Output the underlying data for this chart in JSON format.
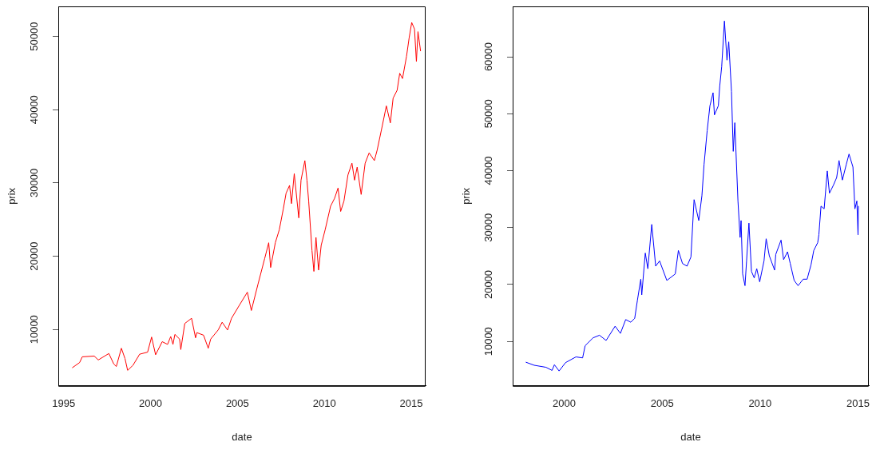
{
  "chart_data": [
    {
      "type": "line",
      "xlabel": "date",
      "ylabel": "prix",
      "marker": "none",
      "line_style": "solid",
      "xlim": [
        1994.69,
        2015.83
      ],
      "xticks": [
        1995,
        2000,
        2005,
        2010,
        2015
      ],
      "ylim": [
        2300,
        54100
      ],
      "yticks": [
        10000,
        20000,
        30000,
        40000,
        50000
      ],
      "x": [
        1995.49,
        1995.92,
        1996.07,
        1996.76,
        1996.99,
        1997.6,
        1997.88,
        1998.03,
        1998.32,
        1998.53,
        1998.68,
        1998.99,
        1999.37,
        1999.83,
        2000.06,
        2000.29,
        2000.67,
        2000.98,
        2001.16,
        2001.29,
        2001.4,
        2001.67,
        2001.74,
        2001.97,
        2002.36,
        2002.59,
        2002.66,
        2003.05,
        2003.32,
        2003.46,
        2003.89,
        2004.12,
        2004.43,
        2004.66,
        2005.11,
        2005.57,
        2005.8,
        2006.18,
        2006.57,
        2006.8,
        2006.91,
        2007.18,
        2007.41,
        2007.64,
        2007.8,
        2008.0,
        2008.11,
        2008.27,
        2008.53,
        2008.66,
        2008.88,
        2009.0,
        2009.1,
        2009.29,
        2009.4,
        2009.52,
        2009.67,
        2009.82,
        2010.05,
        2010.36,
        2010.59,
        2010.79,
        2010.94,
        2011.13,
        2011.36,
        2011.59,
        2011.74,
        2011.89,
        2012.12,
        2012.35,
        2012.58,
        2012.88,
        2013.04,
        2013.34,
        2013.57,
        2013.8,
        2013.96,
        2014.19,
        2014.34,
        2014.5,
        2014.73,
        2014.88,
        2015.03,
        2015.19,
        2015.3,
        2015.39,
        2015.54
      ],
      "series": [
        {
          "color": "#ff0000",
          "values": [
            4770,
            5490,
            6270,
            6370,
            5840,
            6720,
            5300,
            4950,
            7440,
            6020,
            4420,
            5120,
            6620,
            6910,
            8970,
            6550,
            8330,
            7970,
            9040,
            7970,
            9330,
            8690,
            7260,
            10820,
            11530,
            8860,
            9570,
            9220,
            7440,
            8690,
            9930,
            10990,
            9930,
            11530,
            13310,
            15090,
            12590,
            16160,
            19710,
            21840,
            18460,
            21840,
            23630,
            26460,
            28600,
            29670,
            27180,
            31270,
            25230,
            30380,
            33050,
            30380,
            27530,
            20780,
            17930,
            22560,
            18110,
            21490,
            23630,
            26830,
            27900,
            29310,
            26110,
            27530,
            31090,
            32700,
            30380,
            32160,
            28430,
            32700,
            34110,
            33050,
            34470,
            37850,
            40520,
            38200,
            41580,
            42650,
            44970,
            44250,
            47270,
            49770,
            51900,
            51010,
            46570,
            50650,
            47990
          ]
        }
      ]
    },
    {
      "type": "line",
      "xlabel": "date",
      "ylabel": "prix",
      "marker": "none",
      "line_style": "solid",
      "xlim": [
        1997.37,
        2015.55
      ],
      "xticks": [
        2000,
        2005,
        2010,
        2015
      ],
      "ylim": [
        2200,
        68850
      ],
      "yticks": [
        10000,
        20000,
        30000,
        40000,
        50000,
        60000
      ],
      "x": [
        1998.04,
        1998.47,
        1999.07,
        1999.38,
        1999.5,
        1999.74,
        2000.07,
        2000.6,
        2000.94,
        2001.07,
        2001.47,
        2001.8,
        2002.14,
        2002.6,
        2002.87,
        2003.14,
        2003.4,
        2003.6,
        2003.74,
        2003.91,
        2003.96,
        2004.14,
        2004.27,
        2004.47,
        2004.67,
        2004.87,
        2005.24,
        2005.67,
        2005.83,
        2006.04,
        2006.27,
        2006.47,
        2006.63,
        2006.87,
        2007.03,
        2007.14,
        2007.3,
        2007.44,
        2007.6,
        2007.67,
        2007.87,
        2007.94,
        2008.04,
        2008.18,
        2008.31,
        2008.4,
        2008.54,
        2008.63,
        2008.71,
        2008.87,
        2008.98,
        2009.03,
        2009.11,
        2009.23,
        2009.31,
        2009.43,
        2009.56,
        2009.7,
        2009.83,
        2009.98,
        2010.2,
        2010.31,
        2010.47,
        2010.74,
        2010.8,
        2011.07,
        2011.2,
        2011.4,
        2011.54,
        2011.74,
        2011.94,
        2012.2,
        2012.4,
        2012.6,
        2012.74,
        2012.94,
        2013.0,
        2013.11,
        2013.27,
        2013.43,
        2013.54,
        2013.74,
        2013.91,
        2014.03,
        2014.2,
        2014.4,
        2014.54,
        2014.74,
        2014.84,
        2014.94,
        2015.0,
        2015.02
      ],
      "series": [
        {
          "color": "#0000ff",
          "values": [
            6370,
            5820,
            5470,
            4920,
            5920,
            4820,
            6290,
            7290,
            7120,
            9260,
            10630,
            11100,
            10180,
            12690,
            11420,
            13850,
            13380,
            14070,
            17280,
            20940,
            18190,
            25530,
            22780,
            30560,
            23230,
            24150,
            20720,
            21860,
            25980,
            23690,
            23230,
            24840,
            34910,
            31240,
            35600,
            41090,
            47040,
            51400,
            53690,
            49790,
            51400,
            54830,
            58270,
            66280,
            59410,
            62630,
            53910,
            43390,
            48420,
            34680,
            28270,
            31240,
            21860,
            19800,
            24150,
            30790,
            22310,
            21170,
            22780,
            20480,
            24150,
            28040,
            25060,
            22540,
            25290,
            27810,
            24370,
            25750,
            23690,
            20720,
            19800,
            20940,
            20940,
            23470,
            25980,
            27350,
            28730,
            33770,
            33300,
            39950,
            36050,
            37430,
            38800,
            41780,
            38350,
            41090,
            42920,
            40640,
            33300,
            34680,
            28730,
            33800
          ]
        }
      ]
    }
  ]
}
